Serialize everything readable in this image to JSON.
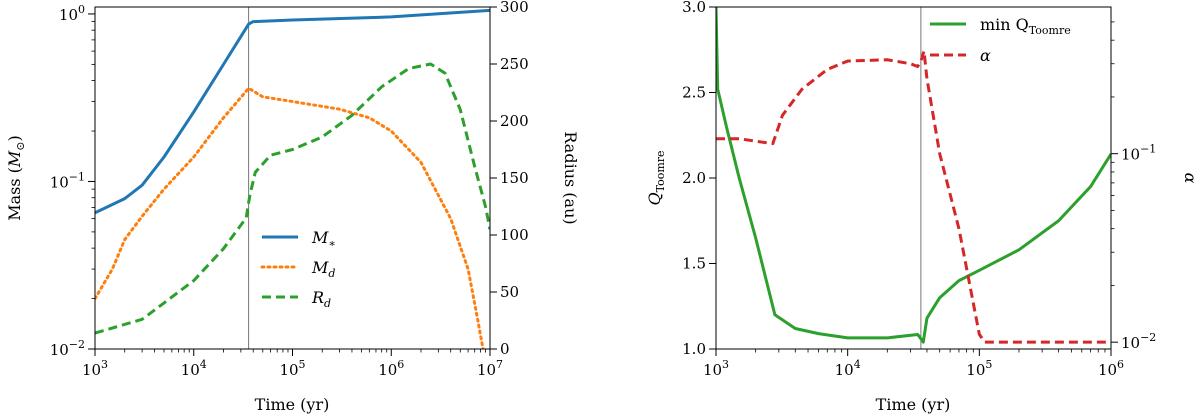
{
  "chart_data": [
    {
      "type": "line",
      "x_scale": "log",
      "xlim": [
        1000,
        10000000
      ],
      "xlabel": "Time (yr)",
      "xticks": [
        {
          "value": 1000,
          "base": "10",
          "exp": "3"
        },
        {
          "value": 10000,
          "base": "10",
          "exp": "4"
        },
        {
          "value": 100000,
          "base": "10",
          "exp": "5"
        },
        {
          "value": 1000000,
          "base": "10",
          "exp": "6"
        },
        {
          "value": 10000000,
          "base": "10",
          "exp": "7"
        }
      ],
      "left_axis": {
        "label_main": "Mass (",
        "label_sym": "M",
        "label_sub": "⊙",
        "label_close": ")",
        "scale": "log",
        "ylim": [
          0.01,
          1.1
        ],
        "ticks": [
          {
            "value": 0.01,
            "base": "10",
            "exp": "−2"
          },
          {
            "value": 0.1,
            "base": "10",
            "exp": "−1"
          },
          {
            "value": 1,
            "base": "10",
            "exp": "0"
          }
        ]
      },
      "right_axis": {
        "label": "Radius (au)",
        "scale": "linear",
        "ylim": [
          0,
          300
        ],
        "ticks": [
          "0",
          "50",
          "100",
          "150",
          "200",
          "250",
          "300"
        ]
      },
      "vline_x": 36000,
      "legend_position": "lower-center",
      "series": [
        {
          "name": "M_*",
          "label_main": "M",
          "label_sub": "∗",
          "axis": "left",
          "color": "#1f77b4",
          "dash": "solid",
          "points": [
            [
              1000,
              0.065
            ],
            [
              2000,
              0.079
            ],
            [
              3000,
              0.095
            ],
            [
              5000,
              0.14
            ],
            [
              10000,
              0.26
            ],
            [
              20000,
              0.5
            ],
            [
              36000,
              0.87
            ],
            [
              40000,
              0.9
            ],
            [
              100000,
              0.92
            ],
            [
              1000000,
              0.96
            ],
            [
              10000000,
              1.05
            ]
          ]
        },
        {
          "name": "M_d",
          "label_main": "M",
          "label_sub": "d",
          "axis": "left",
          "color": "#ff7f0e",
          "dash": "dot",
          "points": [
            [
              1000,
              0.02
            ],
            [
              1500,
              0.03
            ],
            [
              2000,
              0.045
            ],
            [
              3000,
              0.062
            ],
            [
              5000,
              0.09
            ],
            [
              10000,
              0.14
            ],
            [
              20000,
              0.24
            ],
            [
              36000,
              0.36
            ],
            [
              50000,
              0.32
            ],
            [
              100000,
              0.3
            ],
            [
              300000,
              0.27
            ],
            [
              600000,
              0.24
            ],
            [
              1000000,
              0.2
            ],
            [
              2000000,
              0.13
            ],
            [
              4000000,
              0.06
            ],
            [
              6000000,
              0.03
            ],
            [
              7500000,
              0.015
            ],
            [
              8500000,
              0.01
            ]
          ]
        },
        {
          "name": "R_d",
          "label_main": "R",
          "label_sub": "d",
          "axis": "right",
          "color": "#2ca02c",
          "dash": "dash",
          "points": [
            [
              1000,
              14
            ],
            [
              3000,
              26
            ],
            [
              10000,
              60
            ],
            [
              20000,
              88
            ],
            [
              34000,
              115
            ],
            [
              37000,
              135
            ],
            [
              42000,
              155
            ],
            [
              60000,
              170
            ],
            [
              100000,
              175
            ],
            [
              200000,
              186
            ],
            [
              400000,
              205
            ],
            [
              800000,
              230
            ],
            [
              1500000,
              246
            ],
            [
              2500000,
              250
            ],
            [
              3500000,
              242
            ],
            [
              5000000,
              210
            ],
            [
              7000000,
              160
            ],
            [
              9000000,
              125
            ],
            [
              10000000,
              105
            ]
          ]
        }
      ]
    },
    {
      "type": "line",
      "x_scale": "log",
      "xlim": [
        1000,
        1000000
      ],
      "xlabel": "Time (yr)",
      "xticks": [
        {
          "value": 1000,
          "base": "10",
          "exp": "3"
        },
        {
          "value": 10000,
          "base": "10",
          "exp": "4"
        },
        {
          "value": 100000,
          "base": "10",
          "exp": "5"
        },
        {
          "value": 1000000,
          "base": "10",
          "exp": "6"
        }
      ],
      "left_axis": {
        "label_main": "Q",
        "label_sub": "Toomre",
        "scale": "linear",
        "ylim": [
          1.0,
          3.0
        ],
        "ticks": [
          "1.0",
          "1.5",
          "2.0",
          "2.5",
          "3.0"
        ]
      },
      "right_axis": {
        "label": "α",
        "scale": "log",
        "ylim": [
          0.0092,
          0.6
        ],
        "ticks": [
          {
            "value": 0.01,
            "base": "10",
            "exp": "−2"
          },
          {
            "value": 0.1,
            "base": "10",
            "exp": "−1"
          }
        ]
      },
      "vline_x": 36000,
      "legend_position": "top-right",
      "series": [
        {
          "name": "min Q_Toomre",
          "label_main": "min Q",
          "label_sub": "Toomre",
          "axis": "left",
          "color": "#2ca02c",
          "dash": "solid",
          "points": [
            [
              1000,
              3.0
            ],
            [
              1030,
              2.52
            ],
            [
              1200,
              2.3
            ],
            [
              1500,
              2.0
            ],
            [
              2000,
              1.65
            ],
            [
              2800,
              1.2
            ],
            [
              4000,
              1.12
            ],
            [
              6000,
              1.09
            ],
            [
              10000,
              1.065
            ],
            [
              20000,
              1.065
            ],
            [
              34000,
              1.085
            ],
            [
              36000,
              1.06
            ],
            [
              37500,
              1.04
            ],
            [
              40000,
              1.18
            ],
            [
              50000,
              1.3
            ],
            [
              70000,
              1.4
            ],
            [
              100000,
              1.46
            ],
            [
              200000,
              1.58
            ],
            [
              400000,
              1.75
            ],
            [
              700000,
              1.95
            ],
            [
              1000000,
              2.14
            ]
          ]
        },
        {
          "name": "α",
          "label_main": "α",
          "label_sub": "",
          "axis": "right",
          "color": "#d62728",
          "dash": "dash",
          "points": [
            [
              1000,
              0.12
            ],
            [
              1500,
              0.12
            ],
            [
              2700,
              0.113
            ],
            [
              3200,
              0.16
            ],
            [
              4500,
              0.22
            ],
            [
              7000,
              0.28
            ],
            [
              10000,
              0.31
            ],
            [
              20000,
              0.315
            ],
            [
              30000,
              0.3
            ],
            [
              34000,
              0.29
            ],
            [
              36000,
              0.31
            ],
            [
              38000,
              0.35
            ],
            [
              40000,
              0.25
            ],
            [
              50000,
              0.1
            ],
            [
              70000,
              0.04
            ],
            [
              100000,
              0.011
            ],
            [
              110000,
              0.01
            ],
            [
              1000000,
              0.01
            ]
          ]
        }
      ]
    }
  ]
}
